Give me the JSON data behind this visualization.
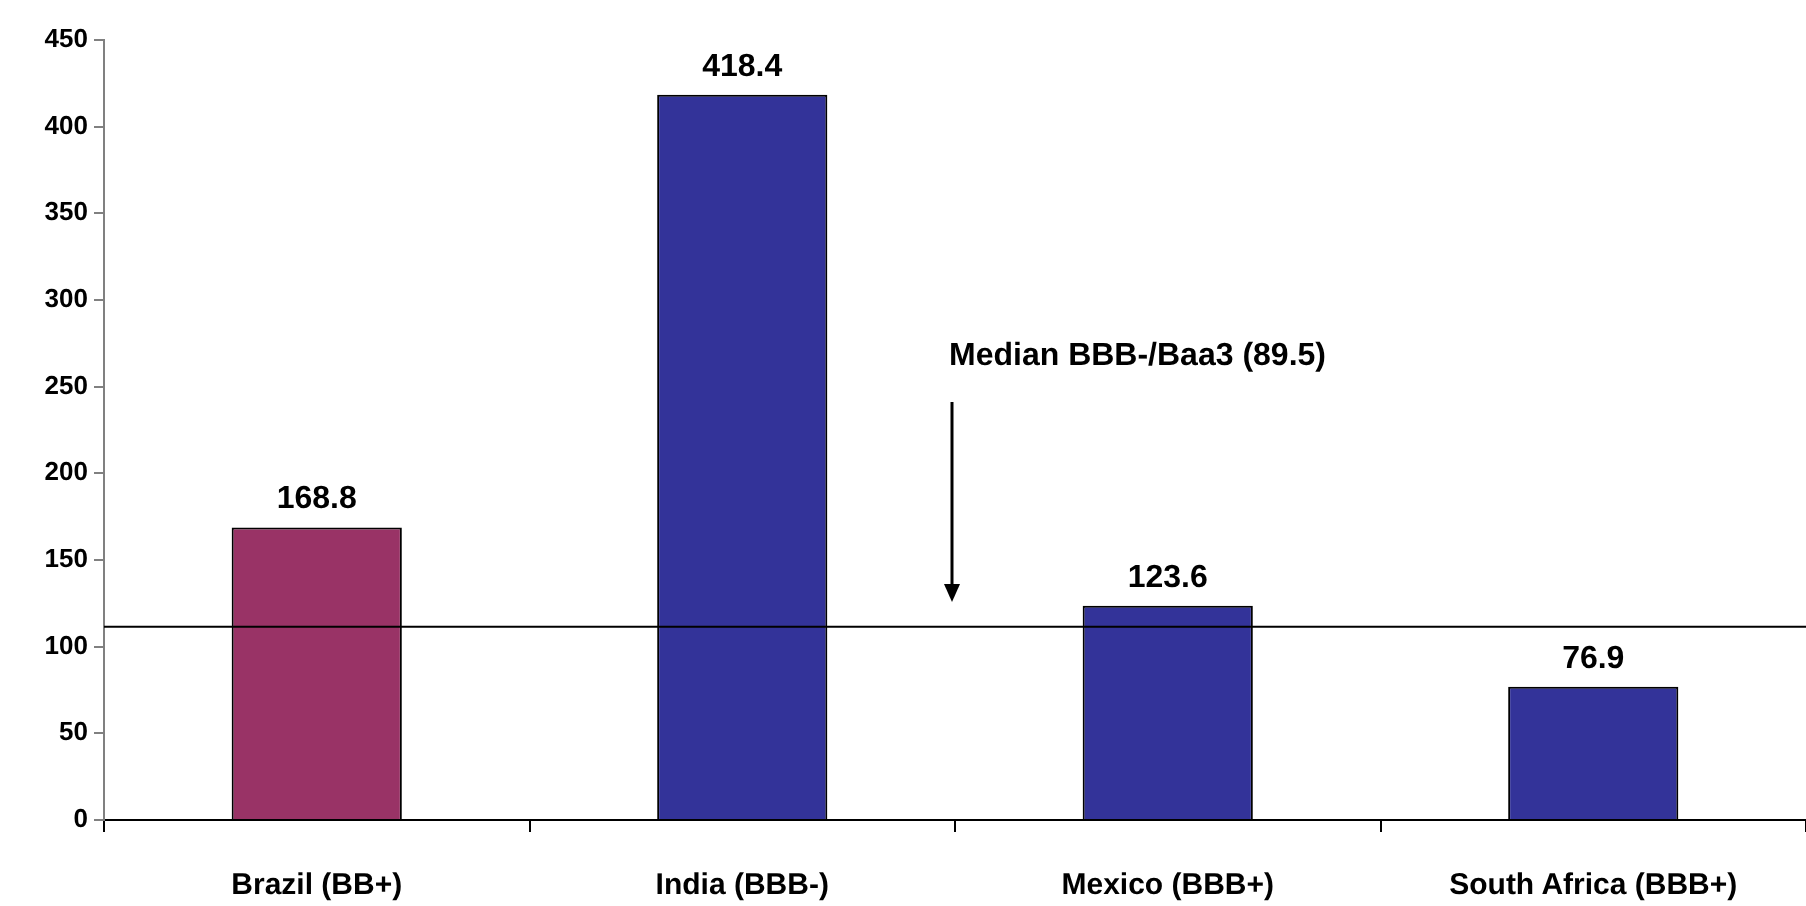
{
  "chart_data": {
    "type": "bar",
    "categories": [
      "Brazil (BB+)",
      "India (BBB-)",
      "Mexico (BBB+)",
      "South Africa (BBB+)"
    ],
    "values": [
      168.8,
      418.4,
      123.6,
      76.9
    ],
    "colors": [
      "#993366",
      "#333399",
      "#333399",
      "#333399"
    ],
    "ylim": [
      0,
      450
    ],
    "yticks": [
      0,
      50,
      100,
      150,
      200,
      250,
      300,
      350,
      400,
      450
    ],
    "grid": false,
    "legend": false,
    "data_labels": true,
    "ref_lines": [
      {
        "axis": "y",
        "value": 112,
        "label": "Median BBB-/Baa3 (89.5)",
        "color": "#000000"
      }
    ]
  }
}
